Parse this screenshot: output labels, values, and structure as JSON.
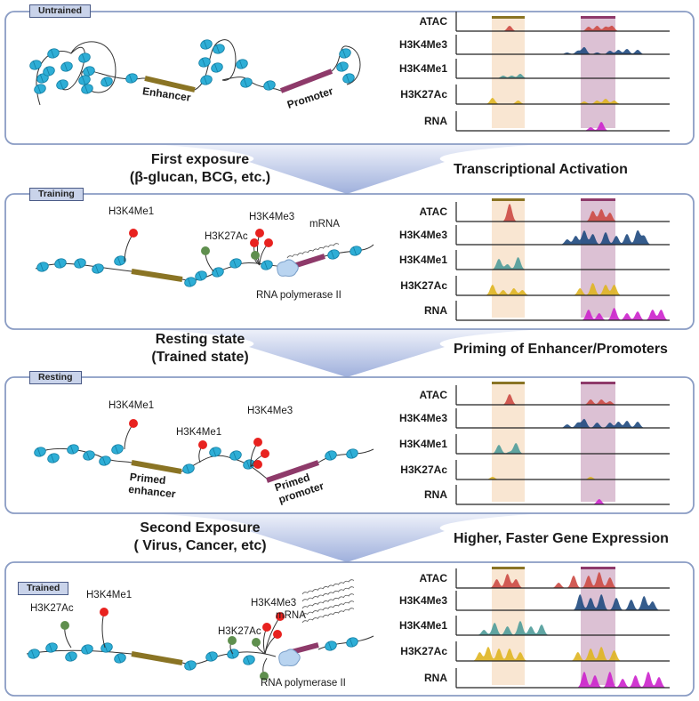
{
  "colors": {
    "panel_border": "#8a9cc4",
    "enhancer": "#8a7424",
    "promoter": "#8e3a6a",
    "nucleosome": "#2eaed6",
    "h3k4me3_dot": "#e8221f",
    "h3k27ac_dot": "#5f8f4e",
    "enh_band": "#f9e6d2",
    "pro_band": "#dcc1d4"
  },
  "track_names": [
    "ATAC",
    "H3K4Me3",
    "H3K4Me1",
    "H3K27Ac",
    "RNA"
  ],
  "track_colors": [
    "#cc4a44",
    "#1f4a80",
    "#4f9c9a",
    "#dfb521",
    "#cc22cc"
  ],
  "panels": [
    {
      "tag": "Untrained",
      "labels": {
        "enhancer": "Enhancer",
        "promoter": "Promoter"
      },
      "signals": [
        [
          [
            25,
            0.3
          ],
          [
            62,
            0.25
          ],
          [
            66,
            0.3
          ],
          [
            70,
            0.25
          ],
          [
            73,
            0.3
          ]
        ],
        [
          [
            52,
            0.1
          ],
          [
            57,
            0.2
          ],
          [
            60,
            0.4
          ],
          [
            66,
            0.1
          ],
          [
            72,
            0.2
          ],
          [
            76,
            0.25
          ],
          [
            80,
            0.3
          ],
          [
            85,
            0.25
          ]
        ],
        [
          [
            22,
            0.15
          ],
          [
            26,
            0.15
          ],
          [
            30,
            0.25
          ]
        ],
        [
          [
            17,
            0.35
          ],
          [
            29,
            0.2
          ],
          [
            60,
            0.15
          ],
          [
            66,
            0.2
          ],
          [
            70,
            0.3
          ],
          [
            74,
            0.2
          ]
        ],
        [
          [
            63,
            0.2
          ],
          [
            68,
            0.5
          ]
        ]
      ]
    },
    {
      "tag": "Training",
      "labels": {
        "h3k4me1": "H3K4Me1",
        "h3k27ac": "H3K27Ac",
        "h3k4me3": "H3K4Me3",
        "mrna": "mRNA",
        "pol": "RNA polymerase II"
      },
      "signals": [
        [
          [
            25,
            1
          ],
          [
            64,
            0.6
          ],
          [
            68,
            0.7
          ],
          [
            72,
            0.5
          ]
        ],
        [
          [
            52,
            0.3
          ],
          [
            56,
            0.5
          ],
          [
            60,
            0.8
          ],
          [
            64,
            0.6
          ],
          [
            70,
            0.7
          ],
          [
            75,
            0.5
          ],
          [
            80,
            0.6
          ],
          [
            85,
            0.8
          ],
          [
            88,
            0.5
          ]
        ],
        [
          [
            20,
            0.6
          ],
          [
            24,
            0.3
          ],
          [
            29,
            0.7
          ]
        ],
        [
          [
            17,
            0.6
          ],
          [
            22,
            0.3
          ],
          [
            27,
            0.4
          ],
          [
            31,
            0.3
          ],
          [
            58,
            0.4
          ],
          [
            64,
            0.7
          ],
          [
            70,
            0.6
          ],
          [
            74,
            0.6
          ]
        ],
        [
          [
            62,
            0.6
          ],
          [
            67,
            0.4
          ],
          [
            74,
            0.7
          ],
          [
            80,
            0.4
          ],
          [
            85,
            0.5
          ],
          [
            92,
            0.6
          ],
          [
            96,
            0.6
          ]
        ]
      ]
    },
    {
      "tag": "Resting",
      "labels": {
        "h3k4me1_a": "H3K4Me1",
        "h3k4me1_b": "H3K4Me1",
        "h3k4me3": "H3K4Me3",
        "primed_enhancer": "Primed enhancer",
        "primed_promoter": "Primed promoter"
      },
      "signals": [
        [
          [
            25,
            0.6
          ],
          [
            63,
            0.3
          ],
          [
            68,
            0.3
          ],
          [
            72,
            0.2
          ]
        ],
        [
          [
            52,
            0.2
          ],
          [
            57,
            0.3
          ],
          [
            60,
            0.5
          ],
          [
            66,
            0.3
          ],
          [
            72,
            0.3
          ],
          [
            76,
            0.35
          ],
          [
            80,
            0.4
          ],
          [
            85,
            0.35
          ]
        ],
        [
          [
            20,
            0.5
          ],
          [
            25,
            0.1
          ],
          [
            28,
            0.6
          ]
        ],
        [
          [
            17,
            0.15
          ],
          [
            63,
            0.15
          ]
        ],
        [
          [
            67,
            0.3
          ]
        ]
      ]
    },
    {
      "tag": "Trained",
      "labels": {
        "h3k27ac_a": "H3K27Ac",
        "h3k4me1": "H3K4Me1",
        "h3k27ac_b": "H3K27Ac",
        "h3k4me3": "H3K4Me3",
        "mrna": "mRNA",
        "pol": "RNA polymerase II"
      },
      "signals": [
        [
          [
            19,
            0.5
          ],
          [
            24,
            0.8
          ],
          [
            28,
            0.5
          ],
          [
            48,
            0.3
          ],
          [
            55,
            0.7
          ],
          [
            62,
            0.7
          ],
          [
            67,
            0.9
          ],
          [
            72,
            0.6
          ]
        ],
        [
          [
            58,
            0.9
          ],
          [
            63,
            0.7
          ],
          [
            68,
            0.9
          ],
          [
            75,
            0.7
          ],
          [
            82,
            0.6
          ],
          [
            88,
            0.8
          ],
          [
            92,
            0.5
          ]
        ],
        [
          [
            13,
            0.3
          ],
          [
            18,
            0.7
          ],
          [
            24,
            0.5
          ],
          [
            30,
            0.8
          ],
          [
            35,
            0.5
          ],
          [
            40,
            0.6
          ]
        ],
        [
          [
            11,
            0.5
          ],
          [
            15,
            0.8
          ],
          [
            20,
            0.7
          ],
          [
            25,
            0.7
          ],
          [
            30,
            0.5
          ],
          [
            57,
            0.5
          ],
          [
            63,
            0.7
          ],
          [
            68,
            0.8
          ],
          [
            74,
            0.6
          ]
        ],
        [
          [
            60,
            0.9
          ],
          [
            65,
            0.7
          ],
          [
            72,
            0.9
          ],
          [
            78,
            0.5
          ],
          [
            84,
            0.7
          ],
          [
            90,
            0.9
          ],
          [
            95,
            0.6
          ]
        ]
      ]
    }
  ],
  "transitions": [
    {
      "left_1": "First exposure",
      "left_2": "(β-glucan, BCG, etc.)",
      "right": "Transcriptional Activation"
    },
    {
      "left_1": "Resting state",
      "left_2": "(Trained state)",
      "right": "Priming of Enhancer/Promoters"
    },
    {
      "left_1": "Second Exposure",
      "left_2": "( Virus, Cancer, etc)",
      "right": "Higher, Faster Gene Expression"
    }
  ]
}
